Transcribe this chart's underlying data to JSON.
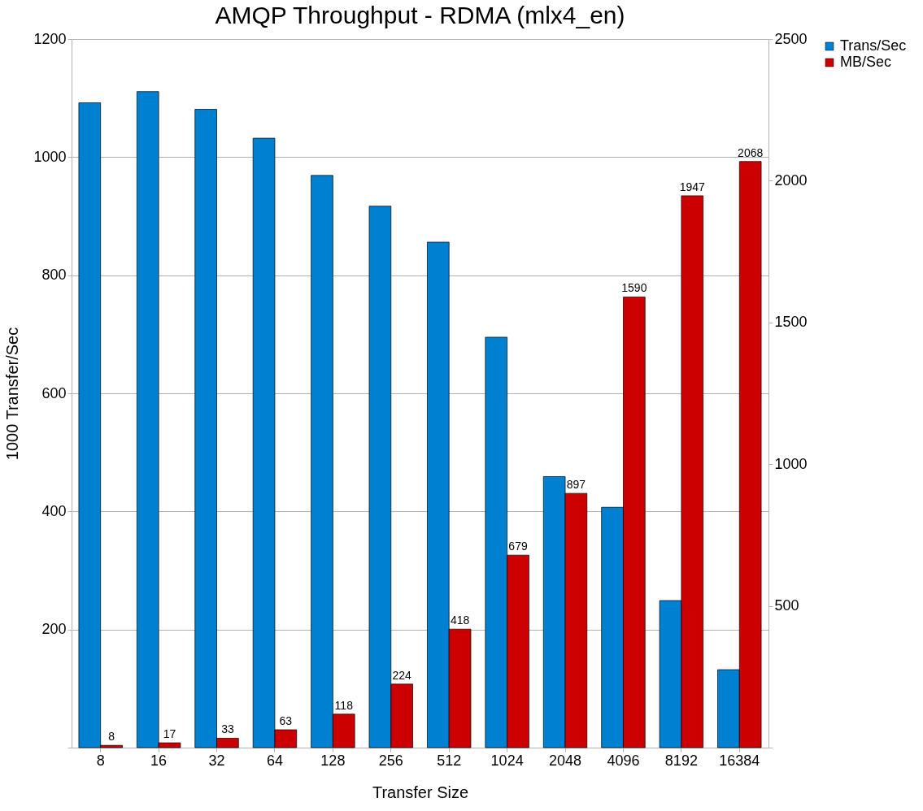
{
  "chart_data": {
    "type": "bar",
    "title": "AMQP Throughput - RDMA (mlx4_en)",
    "xlabel": "Transfer Size",
    "ylabel": "1000 Transfer/Sec",
    "categories": [
      "8",
      "16",
      "32",
      "64",
      "128",
      "256",
      "512",
      "1024",
      "2048",
      "4096",
      "8192",
      "16384"
    ],
    "series": [
      {
        "name": "Trans/Sec",
        "color": "#0080d0",
        "values": [
          1092,
          1111,
          1081,
          1032,
          969,
          917,
          856,
          695,
          459,
          407,
          249,
          132
        ]
      },
      {
        "name": "MB/Sec",
        "color": "#cc0000",
        "axis": "y2",
        "values": [
          8,
          17,
          33,
          63,
          118,
          224,
          418,
          679,
          897,
          1590,
          1947,
          2068
        ],
        "value_labels": [
          "8",
          "17",
          "33",
          "63",
          "118",
          "224",
          "418",
          "679",
          "897",
          "1590",
          "1947",
          "2068"
        ]
      }
    ],
    "ylim": [
      0,
      1200
    ],
    "yticks": [
      {
        "value": 0,
        "label": null
      },
      200,
      400,
      600,
      800,
      1000,
      1200
    ],
    "y2lim": [
      0,
      2500
    ],
    "y2ticks": [
      {
        "value": 0,
        "label": null
      },
      500,
      1000,
      1500,
      2000,
      2500
    ],
    "grid": "y",
    "legend": "right"
  }
}
